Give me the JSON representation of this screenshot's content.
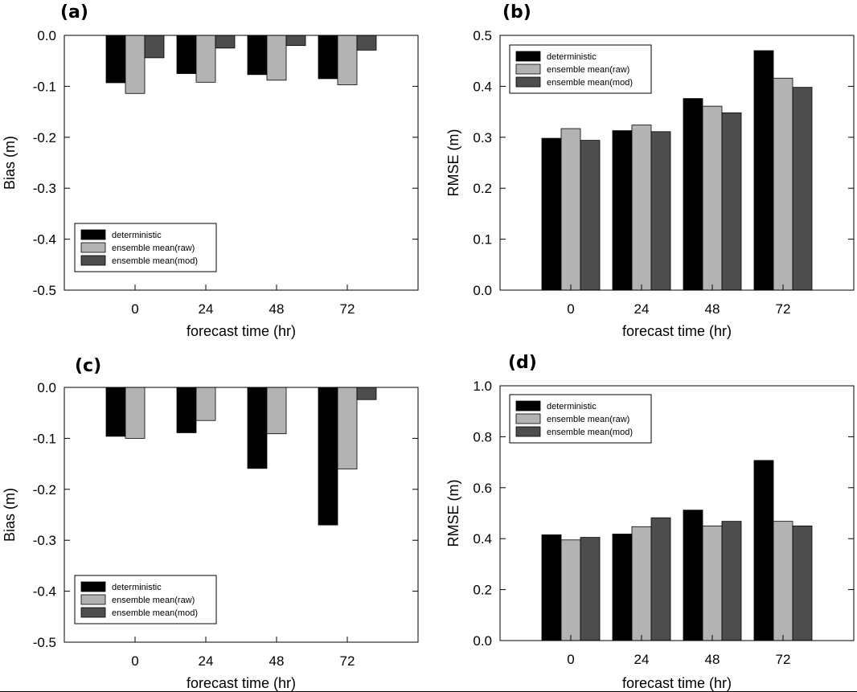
{
  "chart_data": [
    {
      "panel": "(a)",
      "type": "bar",
      "categories": [
        "0",
        "24",
        "48",
        "72"
      ],
      "series": [
        {
          "name": "deterministic",
          "color": "#000000",
          "values": [
            -0.093,
            -0.075,
            -0.077,
            -0.085
          ]
        },
        {
          "name": "ensemble mean(raw)",
          "color": "#b3b3b3",
          "values": [
            -0.114,
            -0.092,
            -0.088,
            -0.097
          ]
        },
        {
          "name": "ensemble mean(mod)",
          "color": "#4d4d4d",
          "values": [
            -0.044,
            -0.025,
            -0.02,
            -0.029
          ]
        }
      ],
      "xlabel": "forecast time (hr)",
      "ylabel": "Bias (m)",
      "ylim": [
        -0.5,
        0.0
      ],
      "yticks": [
        "0.0",
        "-0.1",
        "-0.2",
        "-0.3",
        "-0.4",
        "-0.5"
      ],
      "ytick_values": [
        0.0,
        -0.1,
        -0.2,
        -0.3,
        -0.4,
        -0.5
      ],
      "legend_position": "bottom-left"
    },
    {
      "panel": "(b)",
      "type": "bar",
      "categories": [
        "0",
        "24",
        "48",
        "72"
      ],
      "series": [
        {
          "name": "deterministic",
          "color": "#000000",
          "values": [
            0.298,
            0.313,
            0.376,
            0.47
          ]
        },
        {
          "name": "ensemble mean(raw)",
          "color": "#b3b3b3",
          "values": [
            0.317,
            0.324,
            0.361,
            0.416
          ]
        },
        {
          "name": "ensemble mean(mod)",
          "color": "#4d4d4d",
          "values": [
            0.294,
            0.311,
            0.348,
            0.398
          ]
        }
      ],
      "xlabel": "forecast time (hr)",
      "ylabel": "RMSE (m)",
      "ylim": [
        0.0,
        0.5
      ],
      "yticks": [
        "0.0",
        "0.1",
        "0.2",
        "0.3",
        "0.4",
        "0.5"
      ],
      "ytick_values": [
        0.0,
        0.1,
        0.2,
        0.3,
        0.4,
        0.5
      ],
      "legend_position": "top-left"
    },
    {
      "panel": "(c)",
      "type": "bar",
      "categories": [
        "0",
        "24",
        "48",
        "72"
      ],
      "series": [
        {
          "name": "deterministic",
          "color": "#000000",
          "values": [
            -0.096,
            -0.089,
            -0.159,
            -0.27
          ]
        },
        {
          "name": "ensemble mean(raw)",
          "color": "#b3b3b3",
          "values": [
            -0.1,
            -0.065,
            -0.091,
            -0.16
          ]
        },
        {
          "name": "ensemble mean(mod)",
          "color": "#4d4d4d",
          "values": [
            0.0,
            0.0,
            0.0,
            -0.024
          ]
        }
      ],
      "xlabel": "forecast time (hr)",
      "ylabel": "Bias (m)",
      "ylim": [
        -0.5,
        0.0
      ],
      "yticks": [
        "0.0",
        "-0.1",
        "-0.2",
        "-0.3",
        "-0.4",
        "-0.5"
      ],
      "ytick_values": [
        0.0,
        -0.1,
        -0.2,
        -0.3,
        -0.4,
        -0.5
      ],
      "legend_position": "bottom-left"
    },
    {
      "panel": "(d)",
      "type": "bar",
      "categories": [
        "0",
        "24",
        "48",
        "72"
      ],
      "series": [
        {
          "name": "deterministic",
          "color": "#000000",
          "values": [
            0.415,
            0.418,
            0.512,
            0.707
          ]
        },
        {
          "name": "ensemble mean(raw)",
          "color": "#b3b3b3",
          "values": [
            0.395,
            0.447,
            0.45,
            0.468
          ]
        },
        {
          "name": "ensemble mean(mod)",
          "color": "#4d4d4d",
          "values": [
            0.405,
            0.482,
            0.468,
            0.45
          ]
        }
      ],
      "xlabel": "forecast time (hr)",
      "ylabel": "RMSE (m)",
      "ylim": [
        0.0,
        1.0
      ],
      "yticks": [
        "0.0",
        "0.2",
        "0.4",
        "0.6",
        "0.8",
        "1.0"
      ],
      "ytick_values": [
        0.0,
        0.2,
        0.4,
        0.6,
        0.8,
        1.0
      ],
      "legend_position": "top-left"
    }
  ]
}
